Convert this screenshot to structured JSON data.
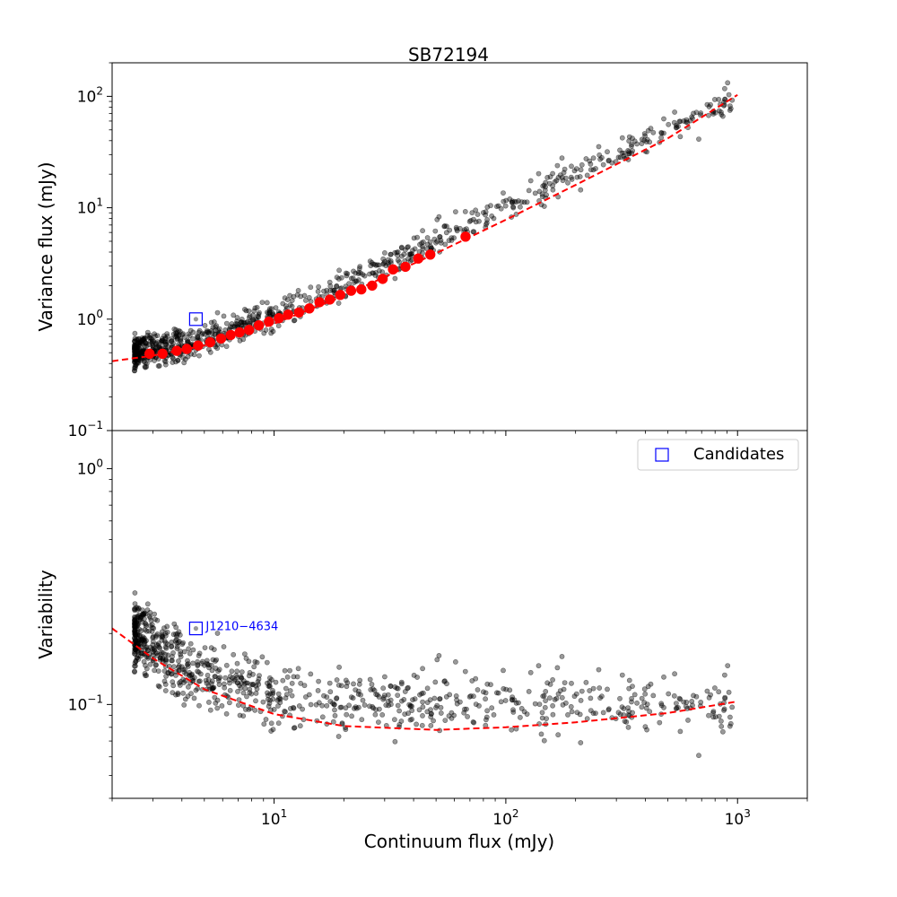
{
  "figure": {
    "title": "SB72194",
    "xlabel": "Continuum flux (mJy)"
  },
  "colors": {
    "points": "#000000",
    "binned": "#ff0000",
    "fit": "#ff0000",
    "candidate": "#0000ff"
  },
  "chart_data": [
    {
      "type": "scatter",
      "panel": "top",
      "title": "SB72194",
      "xlabel": "",
      "ylabel": "Variance flux (mJy)",
      "xscale": "log",
      "yscale": "log",
      "xlim": [
        2.0,
        2000
      ],
      "ylim": [
        0.1,
        200
      ],
      "xticks": [
        {
          "v": 10,
          "b": "10",
          "e": "1"
        },
        {
          "v": 100,
          "b": "10",
          "e": "2"
        },
        {
          "v": 1000,
          "b": "10",
          "e": "3"
        }
      ],
      "yticks": [
        {
          "v": 0.1,
          "b": "10",
          "e": "−1"
        },
        {
          "v": 1,
          "b": "10",
          "e": "0"
        },
        {
          "v": 10,
          "b": "10",
          "e": "1"
        },
        {
          "v": 100,
          "b": "10",
          "e": "2"
        }
      ],
      "binned_series": {
        "name": "Binned medians",
        "x": [
          2.9,
          3.3,
          3.8,
          4.2,
          4.7,
          5.3,
          5.9,
          6.5,
          7.1,
          7.8,
          8.6,
          9.5,
          10.5,
          11.5,
          12.8,
          14.2,
          15.7,
          17.4,
          19.3,
          21.5,
          23.8,
          26.5,
          29.4,
          32.6,
          36.9,
          41.9,
          47.2,
          67.0
        ],
        "y": [
          0.49,
          0.49,
          0.52,
          0.54,
          0.58,
          0.62,
          0.67,
          0.72,
          0.76,
          0.8,
          0.88,
          0.95,
          1.02,
          1.1,
          1.15,
          1.25,
          1.42,
          1.5,
          1.65,
          1.8,
          1.85,
          2.0,
          2.3,
          2.8,
          2.95,
          3.5,
          3.8,
          5.5
        ]
      },
      "fit_series": {
        "name": "Fit",
        "x": [
          2.0,
          3,
          5,
          10,
          20,
          50,
          100,
          200,
          500,
          1000
        ],
        "y": [
          0.42,
          0.47,
          0.58,
          0.91,
          1.62,
          3.9,
          7.8,
          16,
          42,
          103
        ]
      },
      "candidates": [
        {
          "x": 4.6,
          "y": 1.0
        }
      ]
    },
    {
      "type": "scatter",
      "panel": "bottom",
      "xlabel": "Continuum flux (mJy)",
      "ylabel": "Variability",
      "xscale": "log",
      "yscale": "log",
      "xlim": [
        2.0,
        2000
      ],
      "ylim": [
        0.04,
        1.45
      ],
      "xticks": [
        {
          "v": 10,
          "b": "10",
          "e": "1"
        },
        {
          "v": 100,
          "b": "10",
          "e": "2"
        },
        {
          "v": 1000,
          "b": "10",
          "e": "3"
        }
      ],
      "yticks": [
        {
          "v": 0.1,
          "b": "10",
          "e": "−1"
        },
        {
          "v": 1,
          "b": "10",
          "e": "0"
        }
      ],
      "fit_series": {
        "name": "Fit",
        "x": [
          2.0,
          3,
          5,
          10,
          20,
          50,
          100,
          200,
          500,
          1000
        ],
        "y": [
          0.21,
          0.157,
          0.116,
          0.091,
          0.081,
          0.078,
          0.08,
          0.084,
          0.092,
          0.103
        ]
      },
      "candidates": [
        {
          "x": 4.6,
          "y": 0.21,
          "label": "J1210−4634"
        }
      ],
      "legend": {
        "label": "Candidates",
        "location": "upper right"
      }
    }
  ]
}
